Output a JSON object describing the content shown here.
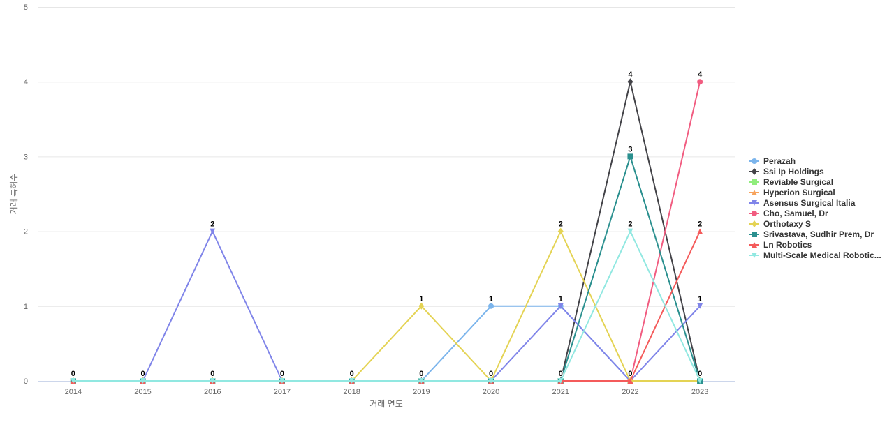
{
  "chart_data": {
    "type": "line",
    "xlabel": "거래 연도",
    "ylabel": "거래 특허수",
    "categories": [
      "2014",
      "2015",
      "2016",
      "2017",
      "2018",
      "2019",
      "2020",
      "2021",
      "2022",
      "2023"
    ],
    "yticks": [
      "0",
      "1",
      "2",
      "3",
      "4",
      "5"
    ],
    "ylim": [
      0,
      5
    ],
    "grid": true,
    "legend_position": "right",
    "series": [
      {
        "name": "Perazah",
        "color": "#7cb5ec",
        "marker": "circle",
        "values": [
          0,
          0,
          0,
          0,
          0,
          0,
          1,
          1,
          0,
          0
        ]
      },
      {
        "name": "Ssi Ip Holdings",
        "color": "#434348",
        "marker": "diamond",
        "values": [
          0,
          0,
          0,
          0,
          0,
          0,
          0,
          0,
          4,
          0
        ]
      },
      {
        "name": "Reviable Surgical",
        "color": "#90ed7d",
        "marker": "square",
        "values": [
          0,
          0,
          0,
          0,
          0,
          0,
          0,
          0,
          0,
          0
        ]
      },
      {
        "name": "Hyperion Surgical",
        "color": "#f7a35c",
        "marker": "triangle",
        "values": [
          0,
          0,
          0,
          0,
          0,
          0,
          0,
          0,
          0,
          0
        ]
      },
      {
        "name": "Asensus Surgical Italia",
        "color": "#8085e9",
        "marker": "triangle-down",
        "values": [
          0,
          0,
          2,
          0,
          0,
          0,
          0,
          1,
          0,
          1
        ]
      },
      {
        "name": "Cho, Samuel, Dr",
        "color": "#f15c80",
        "marker": "circle",
        "values": [
          0,
          0,
          0,
          0,
          0,
          0,
          0,
          0,
          0,
          4
        ]
      },
      {
        "name": "Orthotaxy S",
        "color": "#e4d354",
        "marker": "diamond",
        "values": [
          0,
          0,
          0,
          0,
          0,
          1,
          0,
          2,
          0,
          0
        ]
      },
      {
        "name": "Srivastava, Sudhir Prem, Dr",
        "color": "#2b908f",
        "marker": "square",
        "values": [
          0,
          0,
          0,
          0,
          0,
          0,
          0,
          0,
          3,
          0
        ]
      },
      {
        "name": "Ln Robotics",
        "color": "#f45b5b",
        "marker": "triangle",
        "values": [
          0,
          0,
          0,
          0,
          0,
          0,
          0,
          0,
          0,
          2
        ]
      },
      {
        "name": "Multi-Scale Medical Robotic...",
        "color": "#91e8e1",
        "marker": "triangle-down",
        "values": [
          0,
          0,
          0,
          0,
          0,
          0,
          0,
          0,
          2,
          0
        ]
      }
    ],
    "data_labels": [
      {
        "x": "2014",
        "y": 0,
        "text": "0"
      },
      {
        "x": "2015",
        "y": 0,
        "text": "0"
      },
      {
        "x": "2016",
        "y": 2,
        "text": "2"
      },
      {
        "x": "2016",
        "y": 0,
        "text": "0"
      },
      {
        "x": "2017",
        "y": 0,
        "text": "0"
      },
      {
        "x": "2018",
        "y": 0,
        "text": "0"
      },
      {
        "x": "2019",
        "y": 1,
        "text": "1"
      },
      {
        "x": "2019",
        "y": 0,
        "text": "0"
      },
      {
        "x": "2020",
        "y": 1,
        "text": "1"
      },
      {
        "x": "2020",
        "y": 0,
        "text": "0"
      },
      {
        "x": "2021",
        "y": 2,
        "text": "2"
      },
      {
        "x": "2021",
        "y": 1,
        "text": "1"
      },
      {
        "x": "2021",
        "y": 0,
        "text": "0"
      },
      {
        "x": "2022",
        "y": 4,
        "text": "4"
      },
      {
        "x": "2022",
        "y": 3,
        "text": "3"
      },
      {
        "x": "2022",
        "y": 2,
        "text": "2"
      },
      {
        "x": "2022",
        "y": 0,
        "text": "0"
      },
      {
        "x": "2023",
        "y": 4,
        "text": "4"
      },
      {
        "x": "2023",
        "y": 2,
        "text": "2"
      },
      {
        "x": "2023",
        "y": 1,
        "text": "1"
      },
      {
        "x": "2023",
        "y": 0,
        "text": "0"
      }
    ]
  }
}
